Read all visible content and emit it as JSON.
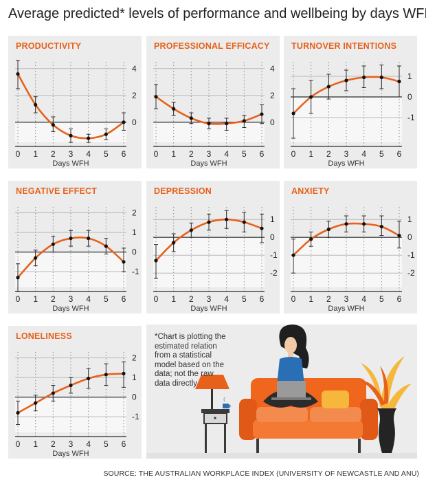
{
  "title": "Average predicted* levels of performance and wellbeing by days WFH",
  "note": "*Chart is plotting the estimated relation from a statistical model based on the data; not the raw data directly",
  "source": "SOURCE: THE AUSTRALIAN WORKPLACE INDEX (UNIVERSITY OF NEWCASTLE AND ANU)",
  "colors": {
    "accent": "#e8611a",
    "panel": "#ececec",
    "zero_band": "#f7f7f7"
  },
  "chart_data": [
    {
      "type": "line",
      "title": "PRODUCTIVITY",
      "xlabel": "Days WFH",
      "ylabel": "",
      "x": [
        0,
        1,
        2,
        3,
        4,
        5,
        6
      ],
      "xticks": [
        "0",
        "1",
        "2",
        "3",
        "4",
        "5",
        "6"
      ],
      "yticks": [
        4,
        2,
        0
      ],
      "ytick_labels": [
        "4",
        "2",
        "0"
      ],
      "ylim": [
        -1.5,
        4.5
      ],
      "values": [
        3.6,
        1.3,
        -0.2,
        -1.0,
        -1.2,
        -0.9,
        0.0
      ],
      "err_low": [
        2.5,
        0.7,
        -0.7,
        -1.5,
        -1.5,
        -1.3,
        -0.6
      ],
      "err_high": [
        4.6,
        1.9,
        0.4,
        -0.5,
        -0.9,
        -0.5,
        0.7
      ]
    },
    {
      "type": "line",
      "title": "PROFESSIONAL EFFICACY",
      "xlabel": "Days WFH",
      "ylabel": "",
      "x": [
        0,
        1,
        2,
        3,
        4,
        5,
        6
      ],
      "xticks": [
        "0",
        "1",
        "2",
        "3",
        "4",
        "5",
        "6"
      ],
      "yticks": [
        4,
        2,
        0
      ],
      "ytick_labels": [
        "4",
        "2",
        "0"
      ],
      "ylim": [
        -1.5,
        4.5
      ],
      "values": [
        1.9,
        1.0,
        0.3,
        -0.1,
        -0.1,
        0.1,
        0.6
      ],
      "err_low": [
        1.0,
        0.5,
        -0.1,
        -0.5,
        -0.6,
        -0.4,
        -0.1
      ],
      "err_high": [
        2.8,
        1.5,
        0.7,
        0.3,
        0.3,
        0.5,
        1.3
      ]
    },
    {
      "type": "line",
      "title": "TURNOVER INTENTIONS",
      "xlabel": "Days WFH",
      "ylabel": "",
      "x": [
        0,
        1,
        2,
        3,
        4,
        5,
        6
      ],
      "xticks": [
        "0",
        "1",
        "2",
        "3",
        "4",
        "5",
        "6"
      ],
      "yticks": [
        1,
        0,
        -1
      ],
      "ytick_labels": [
        "1",
        "0",
        "-1"
      ],
      "ylim": [
        -2.2,
        1.7
      ],
      "values": [
        -0.8,
        0.0,
        0.5,
        0.8,
        0.95,
        0.95,
        0.75
      ],
      "err_low": [
        -2.0,
        -0.8,
        -0.1,
        0.3,
        0.45,
        0.4,
        0.0
      ],
      "err_high": [
        0.4,
        0.8,
        1.1,
        1.3,
        1.5,
        1.55,
        1.5
      ]
    },
    {
      "type": "line",
      "title": "NEGATIVE EFFECT",
      "xlabel": "Days WFH",
      "ylabel": "",
      "x": [
        0,
        1,
        2,
        3,
        4,
        5,
        6
      ],
      "xticks": [
        "0",
        "1",
        "2",
        "3",
        "4",
        "5",
        "6"
      ],
      "yticks": [
        2,
        1,
        0,
        -1
      ],
      "ytick_labels": [
        "2",
        "1",
        "0",
        "-1"
      ],
      "ylim": [
        -1.8,
        2.3
      ],
      "values": [
        -1.3,
        -0.3,
        0.4,
        0.7,
        0.7,
        0.3,
        -0.5
      ],
      "err_low": [
        -2.0,
        -0.7,
        0.0,
        0.3,
        0.3,
        -0.1,
        -1.0
      ],
      "err_high": [
        -0.6,
        0.1,
        0.8,
        1.1,
        1.1,
        0.7,
        0.2
      ]
    },
    {
      "type": "line",
      "title": "DEPRESSION",
      "xlabel": "Days WFH",
      "ylabel": "",
      "x": [
        0,
        1,
        2,
        3,
        4,
        5,
        6
      ],
      "xticks": [
        "0",
        "1",
        "2",
        "3",
        "4",
        "5",
        "6"
      ],
      "yticks": [
        1,
        0,
        -1,
        -2
      ],
      "ytick_labels": [
        "1",
        "0",
        "-1",
        "-2"
      ],
      "ylim": [
        -2.8,
        1.7
      ],
      "values": [
        -1.3,
        -0.3,
        0.4,
        0.85,
        1.0,
        0.85,
        0.5
      ],
      "err_low": [
        -2.3,
        -0.8,
        0.0,
        0.4,
        0.5,
        0.3,
        -0.3
      ],
      "err_high": [
        -0.4,
        0.2,
        0.8,
        1.3,
        1.5,
        1.4,
        1.3
      ]
    },
    {
      "type": "line",
      "title": "ANXIETY",
      "xlabel": "Days WFH",
      "ylabel": "",
      "x": [
        0,
        1,
        2,
        3,
        4,
        5,
        6
      ],
      "xticks": [
        "0",
        "1",
        "2",
        "3",
        "4",
        "5",
        "6"
      ],
      "yticks": [
        1,
        0,
        -1,
        -2
      ],
      "ytick_labels": [
        "1",
        "0",
        "-1",
        "-2"
      ],
      "ylim": [
        -2.8,
        1.7
      ],
      "values": [
        -1.0,
        -0.1,
        0.45,
        0.75,
        0.75,
        0.6,
        0.1
      ],
      "err_low": [
        -2.0,
        -0.5,
        0.0,
        0.3,
        0.3,
        0.1,
        -0.6
      ],
      "err_high": [
        -0.1,
        0.3,
        0.9,
        1.2,
        1.2,
        1.2,
        0.9
      ]
    },
    {
      "type": "line",
      "title": "LONELINESS",
      "xlabel": "Days WFH",
      "ylabel": "",
      "x": [
        0,
        1,
        2,
        3,
        4,
        5,
        6
      ],
      "xticks": [
        "0",
        "1",
        "2",
        "3",
        "4",
        "5",
        "6"
      ],
      "yticks": [
        2,
        1,
        0,
        -1
      ],
      "ytick_labels": [
        "2",
        "1",
        "0",
        "-1"
      ],
      "ylim": [
        -1.8,
        2.3
      ],
      "values": [
        -0.8,
        -0.3,
        0.2,
        0.6,
        0.95,
        1.15,
        1.2
      ],
      "err_low": [
        -1.4,
        -0.7,
        -0.2,
        0.2,
        0.45,
        0.6,
        0.5
      ],
      "err_high": [
        -0.2,
        0.1,
        0.6,
        1.0,
        1.45,
        1.7,
        1.8
      ]
    }
  ]
}
